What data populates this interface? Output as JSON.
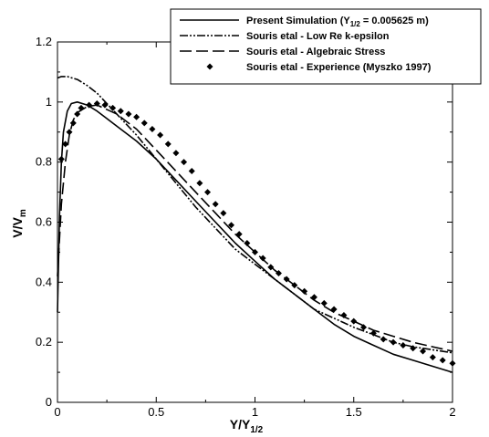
{
  "chart_data": {
    "type": "line",
    "xlabel": "Y/Y",
    "xlabel_sub": "1/2",
    "ylabel": "V/V",
    "ylabel_sub": "m",
    "xlim": [
      0,
      2
    ],
    "ylim": [
      0,
      1.2
    ],
    "x_ticks": [
      "0",
      "0.5",
      "1",
      "1.5",
      "2"
    ],
    "y_ticks": [
      "0",
      "0.2",
      "0.4",
      "0.6",
      "0.8",
      "1",
      "1.2"
    ],
    "grid": false,
    "legend_position": "top-right",
    "legend": [
      {
        "prefix": "Present Simulation  (Y",
        "sub": "1/2",
        "suffix": " = 0.005625 m)"
      },
      {
        "prefix": "Souris etal - Low Re k-epsilon",
        "sub": "",
        "suffix": ""
      },
      {
        "prefix": "Souris etal - Algebraic Stress",
        "sub": "",
        "suffix": ""
      },
      {
        "prefix": "Souris etal - Experience (Myszko 1997)",
        "sub": "",
        "suffix": ""
      }
    ],
    "series": [
      {
        "style": "solid",
        "x": [
          0.0,
          0.01,
          0.02,
          0.03,
          0.05,
          0.07,
          0.1,
          0.15,
          0.2,
          0.3,
          0.4,
          0.5,
          0.6,
          0.7,
          0.8,
          0.9,
          1.0,
          1.1,
          1.2,
          1.3,
          1.4,
          1.5,
          1.6,
          1.7,
          1.8,
          1.9,
          2.0
        ],
        "y": [
          0.3,
          0.62,
          0.8,
          0.9,
          0.97,
          0.995,
          1.0,
          0.99,
          0.97,
          0.92,
          0.87,
          0.81,
          0.74,
          0.67,
          0.6,
          0.53,
          0.47,
          0.41,
          0.36,
          0.31,
          0.26,
          0.22,
          0.19,
          0.16,
          0.14,
          0.12,
          0.1
        ]
      },
      {
        "style": "dash-dot-dot",
        "x": [
          0.0,
          0.02,
          0.05,
          0.1,
          0.15,
          0.2,
          0.3,
          0.4,
          0.5,
          0.6,
          0.7,
          0.8,
          0.9,
          1.0,
          1.1,
          1.2,
          1.3,
          1.4,
          1.5,
          1.6,
          1.7,
          1.8,
          1.9,
          2.0
        ],
        "y": [
          1.08,
          1.085,
          1.085,
          1.075,
          1.055,
          1.03,
          0.96,
          0.89,
          0.81,
          0.73,
          0.65,
          0.58,
          0.51,
          0.46,
          0.41,
          0.36,
          0.31,
          0.28,
          0.25,
          0.225,
          0.2,
          0.185,
          0.175,
          0.165
        ]
      },
      {
        "style": "long-dash",
        "x": [
          0.0,
          0.02,
          0.04,
          0.06,
          0.08,
          0.1,
          0.15,
          0.2,
          0.3,
          0.4,
          0.5,
          0.6,
          0.7,
          0.8,
          0.9,
          1.0,
          1.1,
          1.2,
          1.3,
          1.4,
          1.5,
          1.6,
          1.7,
          1.8,
          1.9,
          2.0
        ],
        "y": [
          0.42,
          0.66,
          0.8,
          0.89,
          0.94,
          0.965,
          0.985,
          0.99,
          0.96,
          0.91,
          0.84,
          0.77,
          0.7,
          0.63,
          0.56,
          0.5,
          0.44,
          0.39,
          0.34,
          0.3,
          0.27,
          0.24,
          0.22,
          0.2,
          0.185,
          0.17
        ]
      },
      {
        "style": "diamond",
        "x": [
          0.02,
          0.04,
          0.06,
          0.08,
          0.1,
          0.12,
          0.16,
          0.2,
          0.24,
          0.28,
          0.32,
          0.36,
          0.4,
          0.44,
          0.48,
          0.52,
          0.56,
          0.6,
          0.64,
          0.68,
          0.72,
          0.76,
          0.8,
          0.84,
          0.88,
          0.92,
          0.96,
          1.0,
          1.04,
          1.08,
          1.12,
          1.16,
          1.2,
          1.25,
          1.3,
          1.35,
          1.4,
          1.45,
          1.5,
          1.55,
          1.6,
          1.65,
          1.7,
          1.75,
          1.8,
          1.85,
          1.9,
          1.95,
          2.0
        ],
        "y": [
          0.81,
          0.86,
          0.9,
          0.93,
          0.96,
          0.98,
          0.99,
          0.995,
          0.99,
          0.98,
          0.97,
          0.96,
          0.95,
          0.93,
          0.91,
          0.89,
          0.86,
          0.83,
          0.8,
          0.77,
          0.73,
          0.7,
          0.66,
          0.63,
          0.59,
          0.56,
          0.53,
          0.5,
          0.48,
          0.45,
          0.43,
          0.41,
          0.39,
          0.37,
          0.35,
          0.33,
          0.31,
          0.29,
          0.27,
          0.25,
          0.23,
          0.21,
          0.2,
          0.19,
          0.18,
          0.17,
          0.15,
          0.14,
          0.13
        ]
      }
    ]
  }
}
